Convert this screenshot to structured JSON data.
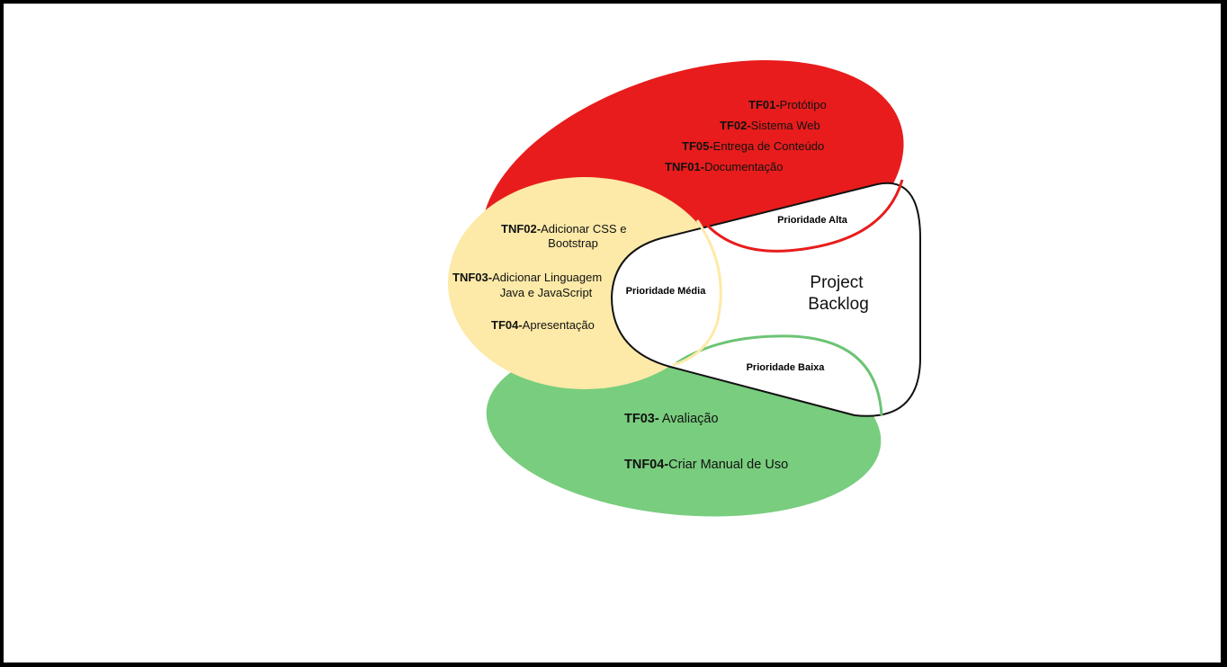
{
  "diagram": {
    "center": {
      "title_line1": "Project",
      "title_line2": "Backlog"
    },
    "priorities": {
      "high": "Prioridade Alta",
      "medium": "Prioridade Média",
      "low": "Prioridade Baixa"
    },
    "colors": {
      "high": "#e81c1c",
      "medium": "#fdeaa8",
      "low": "#79cd7e",
      "low_outline": "#6cc474",
      "outline": "#111111"
    },
    "high_tasks": [
      {
        "code": "TF01-",
        "label": "Protótipo"
      },
      {
        "code": "TF02-",
        "label": "Sistema Web"
      },
      {
        "code": "TF05-",
        "label": "Entrega de Conteúdo"
      },
      {
        "code": "TNF01-",
        "label": "Documentação"
      }
    ],
    "medium_tasks": [
      {
        "code": "TNF02-",
        "label": "Adicionar CSS e",
        "label2": "Bootstrap"
      },
      {
        "code": "TNF03-",
        "label": "Adicionar Linguagem",
        "label2": "Java e JavaScript"
      },
      {
        "code": "TF04-",
        "label": "Apresentação"
      }
    ],
    "low_tasks": [
      {
        "code": "TF03-",
        "label": " Avaliação"
      },
      {
        "code": "TNF04-",
        "label": "Criar Manual de Uso"
      }
    ]
  }
}
